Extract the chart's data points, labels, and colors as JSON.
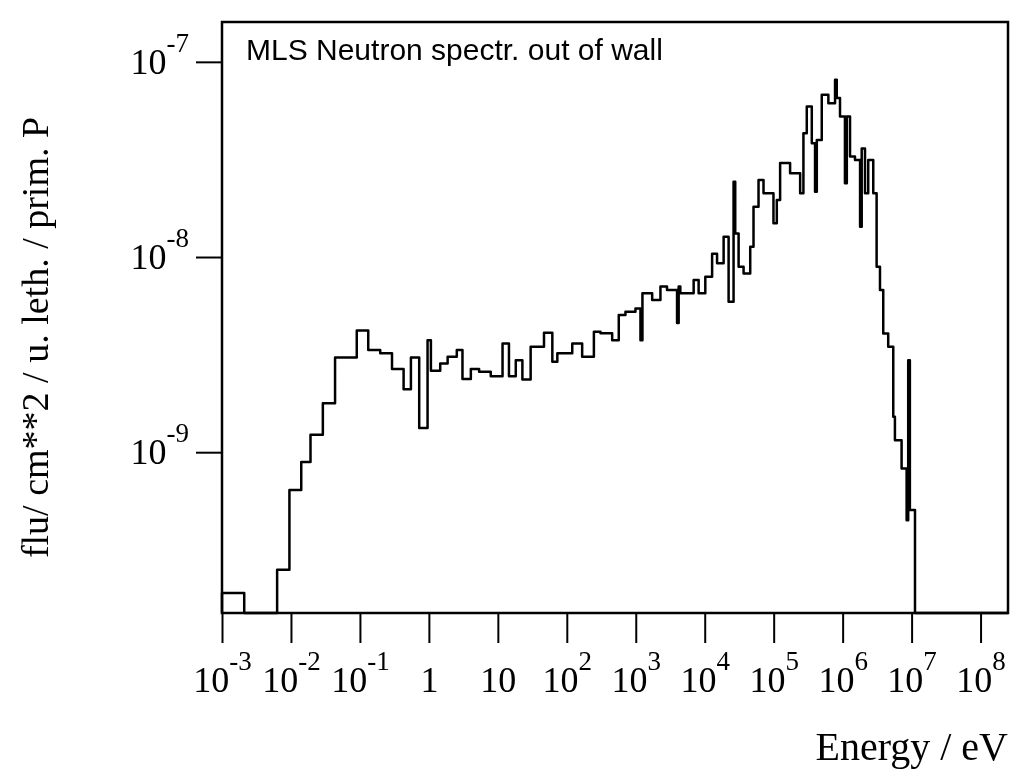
{
  "chart_data": {
    "type": "histogram",
    "title": "MLS Neutron spectr. out of wall",
    "xlabel": "Energy / eV",
    "ylabel": "flu/ cm**2 / u. leth. / prim. P",
    "log": "xy",
    "grid": false,
    "color": "#000000",
    "bins": [
      0.001,
      0.0021,
      0.0063,
      0.0095,
      0.0141,
      0.0192,
      0.029,
      0.0436,
      0.09,
      0.132,
      0.197,
      0.292,
      0.43,
      0.549,
      0.724,
      0.957,
      1.07,
      1.46,
      1.87,
      2.54,
      3.07,
      4.06,
      5.35,
      7.89,
      11.7,
      14.5,
      18.2,
      22.7,
      29.9,
      46.7,
      61.7,
      72.9,
      120,
      167,
      247,
      308,
      455,
      567,
      709,
      990,
      1170,
      1250,
      1730,
      2280,
      2840,
      3970,
      4190,
      4430,
      6910,
      8160,
      10200,
      12800,
      15100,
      18800,
      22200,
      26200,
      27700,
      31000,
      36600,
      45700,
      51000,
      60300,
      71200,
      99300,
      111000,
      124000,
      173000,
      242000,
      270000,
      302000,
      357000,
      398000,
      422000,
      498000,
      621000,
      776000,
      822000,
      916000,
      1080000,
      1150000,
      1280000,
      1510000,
      1790000,
      1890000,
      2110000,
      2350000,
      2780000,
      3110000,
      3480000,
      3880000,
      4580000,
      5420000,
      5730000,
      7160000,
      8470000,
      8930000,
      9440000,
      11200000,
      250000000
    ],
    "values": [
      1.9e-10,
      null,
      2.5e-10,
      6.4e-10,
      8.9e-10,
      1.23e-09,
      1.78e-09,
      3.06e-09,
      4.2e-09,
      3.34e-09,
      3.21e-09,
      2.67e-09,
      2.1e-09,
      3.06e-09,
      1.33e-09,
      3.75e-09,
      2.61e-09,
      2.85e-09,
      3.08e-09,
      3.34e-09,
      2.37e-09,
      2.67e-09,
      2.58e-09,
      2.45e-09,
      3.61e-09,
      2.45e-09,
      2.96e-09,
      2.36e-09,
      3.47e-09,
      4.09e-09,
      2.91e-09,
      3.21e-09,
      3.61e-09,
      3.08e-09,
      4.14e-09,
      4.07e-09,
      3.75e-09,
      5.04e-09,
      5.24e-09,
      5.45e-09,
      3.75e-09,
      6.52e-09,
      6.02e-09,
      7.06e-09,
      6.78e-09,
      4.59e-09,
      7.06e-09,
      6.52e-09,
      7.62e-09,
      6.52e-09,
      7.93e-09,
      1.04e-08,
      9.29e-09,
      1.27e-08,
      5.9e-09,
      2.43e-08,
      1.32e-08,
      8.91e-09,
      8.24e-09,
      1.13e-08,
      1.81e-08,
      2.48e-08,
      2.12e-08,
      1.49e-08,
      1.96e-08,
      3.03e-08,
      2.69e-08,
      2.12e-08,
      4.31e-08,
      5.9e-08,
      3.83e-08,
      2.16e-08,
      3.98e-08,
      6.78e-08,
      6.14e-08,
      8.09e-08,
      6.52e-08,
      5.25e-08,
      2.39e-08,
      5.25e-08,
      3.27e-08,
      3.14e-08,
      1.43e-08,
      3.6e-08,
      2.12e-08,
      3.14e-08,
      2.12e-08,
      8.91e-09,
      6.78e-09,
      4.06e-09,
      3.47e-09,
      1.52e-09,
      1.15e-09,
      8.24e-10,
      4.48e-10,
      2.96e-09,
      5.05e-10,
      null
    ],
    "xlim": [
      0.001,
      250000000
    ],
    "ylim": [
      1.5e-10,
      1.6e-07
    ],
    "xticks": [
      {
        "value": 0.001,
        "label": "10$^{-3}$"
      },
      {
        "value": 0.01,
        "label": "10$^{-2}$"
      },
      {
        "value": 0.1,
        "label": "10$^{-1}$"
      },
      1,
      10,
      {
        "value": 100,
        "label": "10$^{2}$"
      },
      {
        "value": 1000,
        "label": "10$^{3}$"
      },
      {
        "value": 10000,
        "label": "10$^{4}$"
      },
      {
        "value": 100000,
        "label": "10$^{5}$"
      },
      {
        "value": 1000000,
        "label": "10$^{6}$"
      },
      {
        "value": 10000000,
        "label": "10$^{7}$"
      },
      {
        "value": 100000000,
        "label": "10$^{8}$"
      }
    ],
    "yticks": [
      {
        "value": 1e-09,
        "label": "10$^{-9}$"
      },
      {
        "value": 1e-08,
        "label": "10$^{-8}$"
      },
      {
        "value": 1e-07,
        "label": "10$^{-7}$"
      }
    ]
  }
}
